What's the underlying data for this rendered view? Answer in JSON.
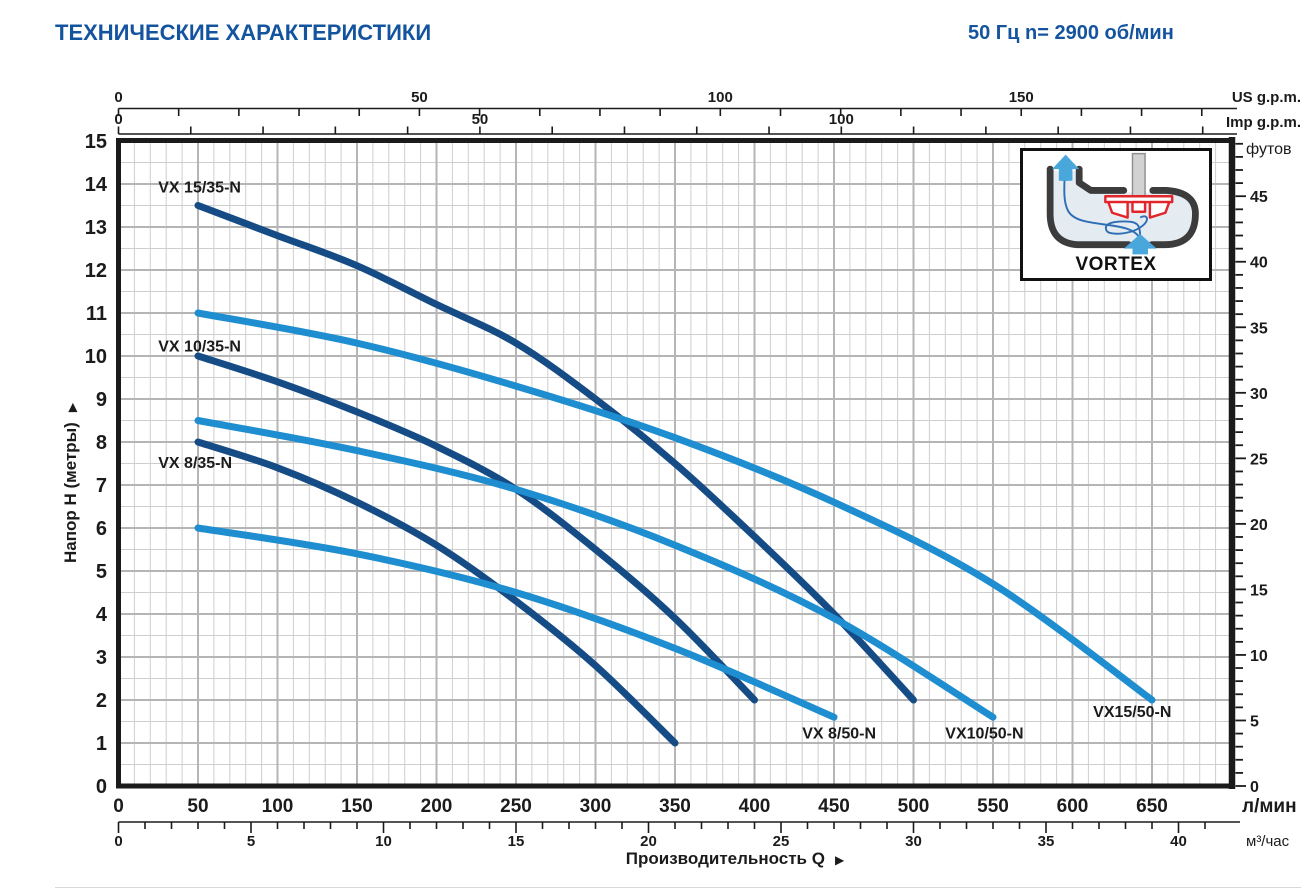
{
  "header": {
    "title": "ТЕХНИЧЕСКИЕ ХАРАКТЕРИСТИКИ",
    "frequency": "50 Гц  n= 2900 об/мин"
  },
  "inset": {
    "caption": "VORTEX"
  },
  "glyphs": {
    "arrow": "▶"
  },
  "chart_data": {
    "type": "line",
    "x_title": "Производительность  Q",
    "y_title": "Напор  H (метры)",
    "x_primary": {
      "unit": "л/мин",
      "labels": [
        0,
        50,
        100,
        150,
        200,
        250,
        300,
        350,
        400,
        450,
        500,
        550,
        600,
        650
      ],
      "minor_step": 10,
      "max": 700
    },
    "x_m3h": {
      "unit": "м³/час",
      "labels": [
        0,
        5,
        10,
        15,
        20,
        25,
        30,
        35,
        40
      ],
      "lpm_per_unit": 16.6667,
      "tick_step": 1,
      "tick_max": 41
    },
    "x_usgpm": {
      "unit": "US g.p.m.",
      "labels": [
        0,
        50,
        100,
        150
      ],
      "lpm_per_unit": 3.785,
      "tick_step": 10,
      "tick_max": 180
    },
    "x_impgpm": {
      "unit": "Imp g.p.m.",
      "labels": [
        0,
        50,
        100
      ],
      "lpm_per_unit": 4.546,
      "tick_step": 10,
      "tick_max": 150
    },
    "y_primary": {
      "labels": [
        0,
        1,
        2,
        3,
        4,
        5,
        6,
        7,
        8,
        9,
        10,
        11,
        12,
        13,
        14,
        15
      ],
      "minor_step": 0.5,
      "max": 15
    },
    "y_feet": {
      "unit": "футов",
      "labels": [
        5,
        10,
        15,
        20,
        25,
        30,
        35,
        40,
        45
      ],
      "m_per_unit": 0.3048,
      "tick_step": 1,
      "tick_max": 49
    },
    "colors": {
      "dark": "#164c85",
      "light": "#1e8ed0"
    },
    "series": [
      {
        "name": "VX 15/35-N",
        "color": "dark",
        "points": [
          [
            50,
            13.5
          ],
          [
            100,
            12.8
          ],
          [
            150,
            12.1
          ],
          [
            200,
            11.2
          ],
          [
            250,
            10.3
          ],
          [
            300,
            9.0
          ],
          [
            350,
            7.5
          ],
          [
            400,
            5.8
          ],
          [
            450,
            4.0
          ],
          [
            500,
            2.0
          ]
        ],
        "label": {
          "q": 25,
          "h": 13.8
        }
      },
      {
        "name": "VX 10/35-N",
        "color": "dark",
        "points": [
          [
            50,
            10.0
          ],
          [
            100,
            9.4
          ],
          [
            150,
            8.7
          ],
          [
            200,
            7.9
          ],
          [
            250,
            6.9
          ],
          [
            300,
            5.5
          ],
          [
            350,
            3.9
          ],
          [
            400,
            2.0
          ]
        ],
        "label": {
          "q": 25,
          "h": 10.1
        }
      },
      {
        "name": "VX 8/35-N",
        "color": "dark",
        "points": [
          [
            50,
            8.0
          ],
          [
            100,
            7.4
          ],
          [
            150,
            6.6
          ],
          [
            200,
            5.6
          ],
          [
            250,
            4.3
          ],
          [
            300,
            2.8
          ],
          [
            350,
            1.0
          ]
        ],
        "label": {
          "q": 25,
          "h": 7.4
        }
      },
      {
        "name": "VX15/50-N",
        "color": "light",
        "points": [
          [
            50,
            11.0
          ],
          [
            150,
            10.3
          ],
          [
            250,
            9.3
          ],
          [
            350,
            8.1
          ],
          [
            450,
            6.6
          ],
          [
            550,
            4.7
          ],
          [
            650,
            2.0
          ]
        ],
        "label": {
          "q": 613,
          "h": 1.6
        }
      },
      {
        "name": "VX10/50-N",
        "color": "light",
        "points": [
          [
            50,
            8.5
          ],
          [
            150,
            7.8
          ],
          [
            250,
            6.9
          ],
          [
            350,
            5.6
          ],
          [
            450,
            3.9
          ],
          [
            550,
            1.6
          ]
        ],
        "label": {
          "q": 520,
          "h": 1.1
        }
      },
      {
        "name": "VX 8/50-N",
        "color": "light",
        "points": [
          [
            50,
            6.0
          ],
          [
            150,
            5.4
          ],
          [
            250,
            4.5
          ],
          [
            350,
            3.2
          ],
          [
            450,
            1.6
          ]
        ],
        "label": {
          "q": 430,
          "h": 1.1
        }
      }
    ]
  }
}
